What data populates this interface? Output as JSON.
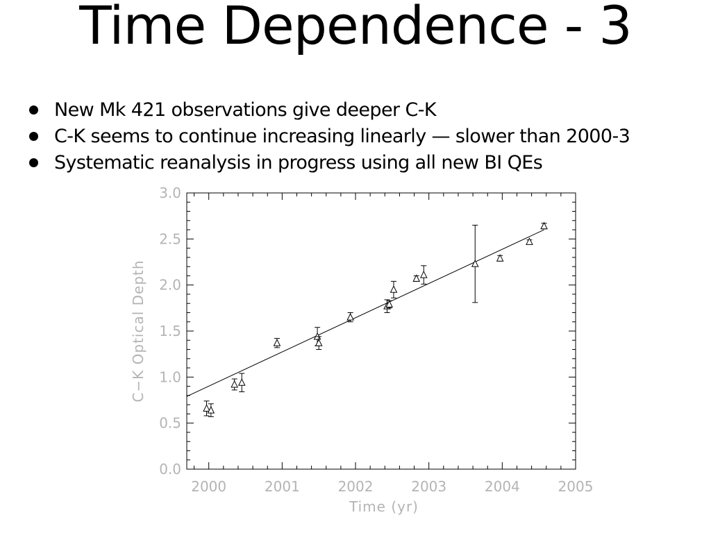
{
  "slide": {
    "title": "Time Dependence - 3",
    "bullets": [
      "New Mk 421 observations give deeper C-K",
      "C-K seems to continue increasing linearly — slower than 2000-3",
      "Systematic reanalysis in progress using all new BI QEs"
    ]
  },
  "chart_data": {
    "type": "scatter",
    "xlabel": "Time (yr)",
    "ylabel": "C−K Optical Depth",
    "xlim": [
      1999.7,
      2005
    ],
    "ylim": [
      0,
      3.0
    ],
    "x_ticks": [
      2000,
      2001,
      2002,
      2003,
      2004,
      2005
    ],
    "x_tick_labels": [
      "2000",
      "2001",
      "2002",
      "2003",
      "2004",
      "2005"
    ],
    "y_ticks": [
      0,
      0.5,
      1.0,
      1.5,
      2.0,
      2.5,
      3.0
    ],
    "y_tick_labels": [
      "0.0",
      "0.5",
      "1.0",
      "1.5",
      "2.0",
      "2.5",
      "3.0"
    ],
    "marker": "triangle",
    "grid": false,
    "points": [
      {
        "x": 1999.97,
        "y": 0.66,
        "err": 0.08
      },
      {
        "x": 2000.03,
        "y": 0.64,
        "err": 0.07
      },
      {
        "x": 2000.35,
        "y": 0.92,
        "err": 0.06
      },
      {
        "x": 2000.45,
        "y": 0.94,
        "err": 0.1
      },
      {
        "x": 2000.93,
        "y": 1.37,
        "err": 0.05
      },
      {
        "x": 2001.48,
        "y": 1.44,
        "err": 0.1
      },
      {
        "x": 2001.5,
        "y": 1.37,
        "err": 0.07
      },
      {
        "x": 2001.93,
        "y": 1.65,
        "err": 0.05
      },
      {
        "x": 2002.43,
        "y": 1.77,
        "err": 0.07
      },
      {
        "x": 2002.46,
        "y": 1.79,
        "err": 0.04
      },
      {
        "x": 2002.52,
        "y": 1.95,
        "err": 0.09
      },
      {
        "x": 2002.83,
        "y": 2.07,
        "err": 0.03
      },
      {
        "x": 2002.93,
        "y": 2.11,
        "err": 0.1
      },
      {
        "x": 2003.63,
        "y": 2.23,
        "err": 0.42
      },
      {
        "x": 2003.97,
        "y": 2.29,
        "err": 0.03
      },
      {
        "x": 2004.37,
        "y": 2.47,
        "err": 0.02
      },
      {
        "x": 2004.57,
        "y": 2.64,
        "err": 0.03
      }
    ],
    "fit_line": {
      "x": [
        1999.7,
        2004.57
      ],
      "y": [
        0.79,
        2.6
      ]
    }
  }
}
